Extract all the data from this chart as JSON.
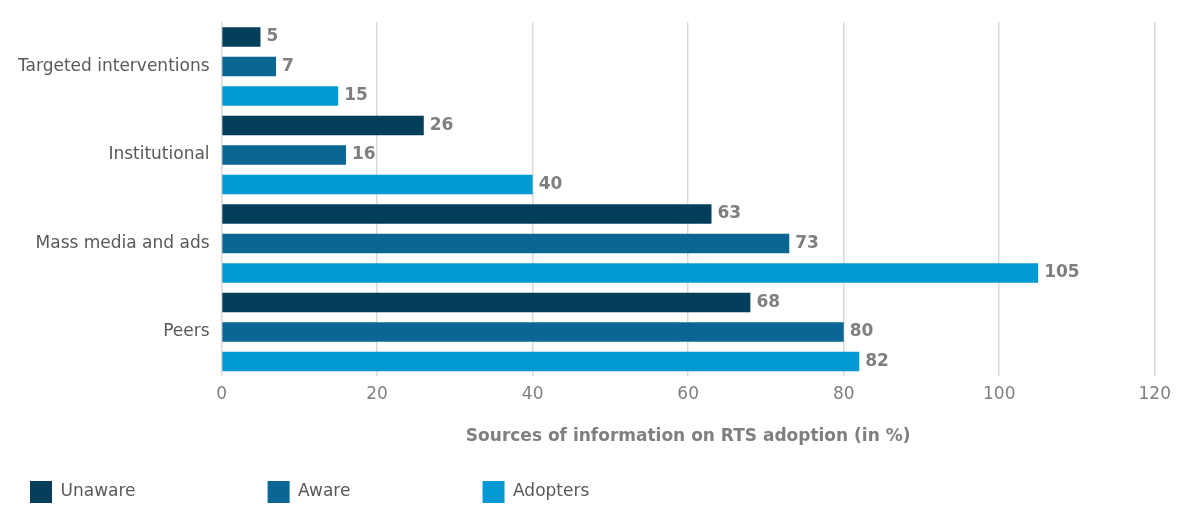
{
  "chart_data": {
    "type": "bar",
    "orientation": "horizontal",
    "xlabel": "Sources of information on RTS adoption (in %)",
    "categories": [
      "Targeted interventions",
      "Institutional",
      "Mass media and ads",
      "Peers"
    ],
    "series": [
      {
        "name": "Unaware",
        "color": "#033f5b",
        "values": [
          5,
          26,
          63,
          68
        ]
      },
      {
        "name": "Aware",
        "color": "#0a6693",
        "values": [
          7,
          16,
          73,
          80
        ]
      },
      {
        "name": "Adopters",
        "color": "#0299d5",
        "values": [
          15,
          40,
          105,
          82
        ]
      }
    ],
    "xlim": [
      0,
      120
    ],
    "xticks": [
      0,
      20,
      40,
      60,
      80,
      100,
      120
    ],
    "grid": "x",
    "legend": "bottom",
    "data_labels": true
  }
}
